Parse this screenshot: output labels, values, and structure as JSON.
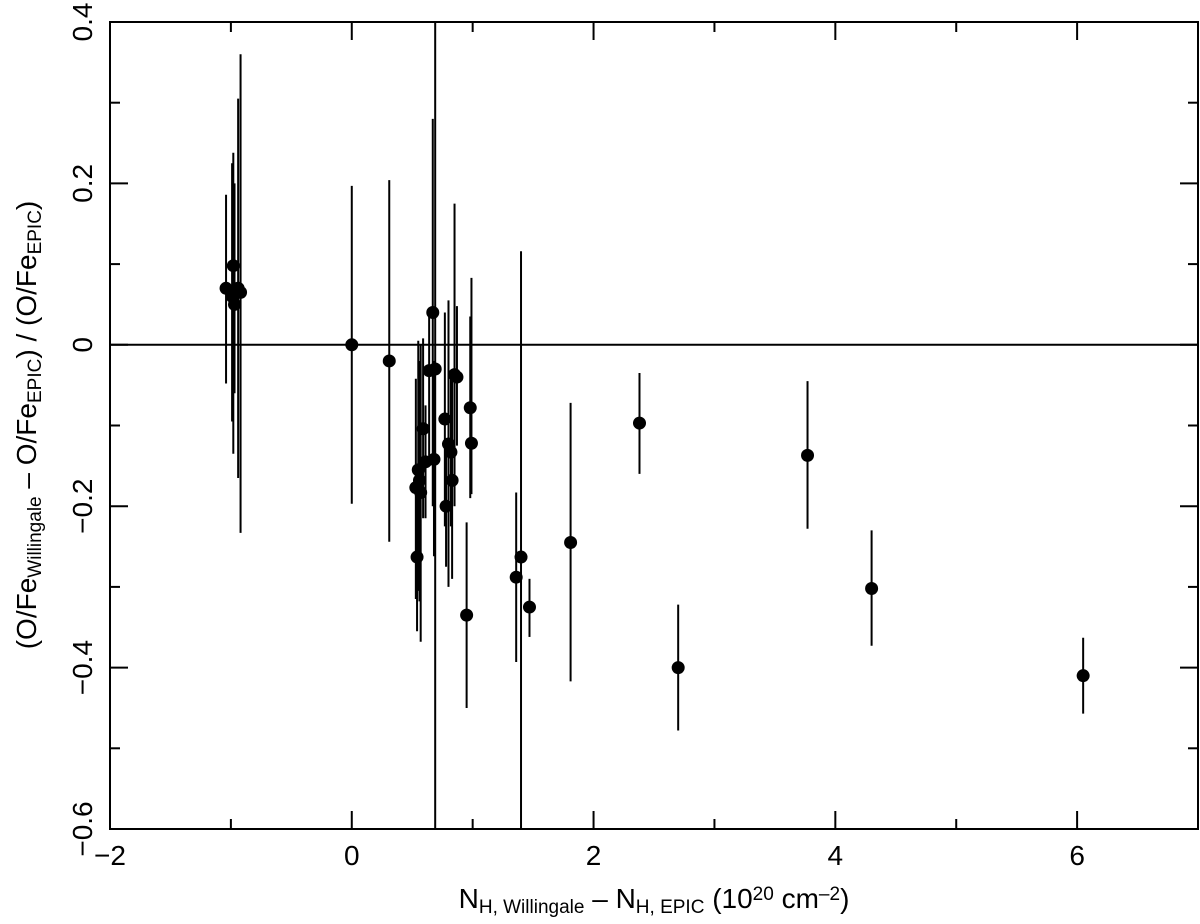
{
  "chart_data": {
    "type": "scatter",
    "title": "",
    "xlabel": {
      "parts": [
        {
          "text": "N",
          "sub": false,
          "sup": false
        },
        {
          "text": "H, Willingale",
          "sub": true,
          "sup": false
        },
        {
          "text": " – N",
          "sub": false,
          "sup": false
        },
        {
          "text": "H, EPIC",
          "sub": true,
          "sup": false
        },
        {
          "text": " (10",
          "sub": false,
          "sup": false
        },
        {
          "text": "20",
          "sub": false,
          "sup": true
        },
        {
          "text": " cm",
          "sub": false,
          "sup": false
        },
        {
          "text": "–2",
          "sub": false,
          "sup": true
        },
        {
          "text": ")",
          "sub": false,
          "sup": false
        }
      ]
    },
    "ylabel": {
      "parts": [
        {
          "text": "(O/Fe",
          "sub": false,
          "sup": false
        },
        {
          "text": "Willingale",
          "sub": true,
          "sup": false
        },
        {
          "text": " – O/Fe",
          "sub": false,
          "sup": false
        },
        {
          "text": "EPIC",
          "sub": true,
          "sup": false
        },
        {
          "text": ") / (O/Fe",
          "sub": false,
          "sup": false
        },
        {
          "text": "EPIC",
          "sub": true,
          "sup": false
        },
        {
          "text": ")",
          "sub": false,
          "sup": false
        }
      ]
    },
    "xlim": [
      -2,
      7
    ],
    "ylim": [
      -0.6,
      0.4
    ],
    "xticks_major": [
      -2,
      0,
      2,
      4,
      6
    ],
    "xtick_labels": [
      "−2",
      "0",
      "2",
      "4",
      "6"
    ],
    "xticks_minor": [
      -1,
      1,
      3,
      5,
      7
    ],
    "yticks_major": [
      -0.6,
      -0.4,
      -0.2,
      0,
      0.2,
      0.4
    ],
    "ytick_labels": [
      "−0.6",
      "−0.4",
      "−0.2",
      "0",
      "0.2",
      "0.4"
    ],
    "yticks_minor": [
      -0.5,
      -0.3,
      -0.1,
      0.1,
      0.3
    ],
    "reference_lines": {
      "horizontal": [
        0
      ],
      "vertical": []
    },
    "grid": false,
    "legend": "none",
    "marker_color": "#000000",
    "points": [
      {
        "x": -1.04,
        "y": 0.07,
        "ylo": -0.048,
        "yhi": 0.186
      },
      {
        "x": -0.99,
        "y": 0.06,
        "ylo": -0.095,
        "yhi": 0.225
      },
      {
        "x": -0.98,
        "y": 0.098,
        "ylo": -0.135,
        "yhi": 0.238
      },
      {
        "x": -0.97,
        "y": 0.05,
        "ylo": -0.06,
        "yhi": 0.2
      },
      {
        "x": -0.94,
        "y": 0.07,
        "ylo": -0.165,
        "yhi": 0.305
      },
      {
        "x": -0.92,
        "y": 0.065,
        "ylo": -0.233,
        "yhi": 0.36
      },
      {
        "x": 0.0,
        "y": 0.0,
        "ylo": -0.197,
        "yhi": 0.197
      },
      {
        "x": 0.31,
        "y": -0.02,
        "ylo": -0.244,
        "yhi": 0.204
      },
      {
        "x": 0.53,
        "y": -0.177,
        "ylo": -0.315,
        "yhi": -0.042
      },
      {
        "x": 0.54,
        "y": -0.263,
        "ylo": -0.355,
        "yhi": -0.17
      },
      {
        "x": 0.55,
        "y": -0.155,
        "ylo": -0.305,
        "yhi": 0.005
      },
      {
        "x": 0.56,
        "y": -0.168,
        "ylo": -0.318,
        "yhi": -0.02
      },
      {
        "x": 0.57,
        "y": -0.183,
        "ylo": -0.368,
        "yhi": 0.0
      },
      {
        "x": 0.59,
        "y": -0.104,
        "ylo": -0.215,
        "yhi": 0.008
      },
      {
        "x": 0.61,
        "y": -0.145,
        "ylo": -0.215,
        "yhi": -0.075
      },
      {
        "x": 0.64,
        "y": -0.032,
        "ylo": -0.15,
        "yhi": 0.04
      },
      {
        "x": 0.67,
        "y": 0.04,
        "ylo": -0.2,
        "yhi": 0.28
      },
      {
        "x": 0.68,
        "y": -0.142,
        "ylo": -0.262,
        "yhi": -0.02
      },
      {
        "x": 0.69,
        "y": -0.03,
        "ylo": -0.6,
        "yhi": 0.4
      },
      {
        "x": 0.77,
        "y": -0.092,
        "ylo": -0.225,
        "yhi": 0.04
      },
      {
        "x": 0.78,
        "y": -0.2,
        "ylo": -0.275,
        "yhi": -0.125
      },
      {
        "x": 0.8,
        "y": -0.123,
        "ylo": -0.3,
        "yhi": 0.055
      },
      {
        "x": 0.82,
        "y": -0.133,
        "ylo": -0.225,
        "yhi": -0.04
      },
      {
        "x": 0.83,
        "y": -0.168,
        "ylo": -0.29,
        "yhi": -0.045
      },
      {
        "x": 0.85,
        "y": -0.037,
        "ylo": -0.2,
        "yhi": 0.175
      },
      {
        "x": 0.87,
        "y": -0.04,
        "ylo": -0.125,
        "yhi": 0.048
      },
      {
        "x": 0.95,
        "y": -0.335,
        "ylo": -0.45,
        "yhi": -0.22
      },
      {
        "x": 0.98,
        "y": -0.078,
        "ylo": -0.19,
        "yhi": 0.035
      },
      {
        "x": 0.99,
        "y": -0.122,
        "ylo": -0.185,
        "yhi": 0.083
      },
      {
        "x": 1.36,
        "y": -0.288,
        "ylo": -0.393,
        "yhi": -0.183
      },
      {
        "x": 1.4,
        "y": -0.263,
        "ylo": -0.6,
        "yhi": 0.116
      },
      {
        "x": 1.47,
        "y": -0.325,
        "ylo": -0.362,
        "yhi": -0.29
      },
      {
        "x": 1.81,
        "y": -0.245,
        "ylo": -0.417,
        "yhi": -0.072
      },
      {
        "x": 2.38,
        "y": -0.097,
        "ylo": -0.16,
        "yhi": -0.035
      },
      {
        "x": 2.7,
        "y": -0.4,
        "ylo": -0.478,
        "yhi": -0.322
      },
      {
        "x": 3.77,
        "y": -0.137,
        "ylo": -0.228,
        "yhi": -0.045
      },
      {
        "x": 4.3,
        "y": -0.302,
        "ylo": -0.373,
        "yhi": -0.23
      },
      {
        "x": 6.05,
        "y": -0.41,
        "ylo": -0.457,
        "yhi": -0.363
      }
    ]
  }
}
